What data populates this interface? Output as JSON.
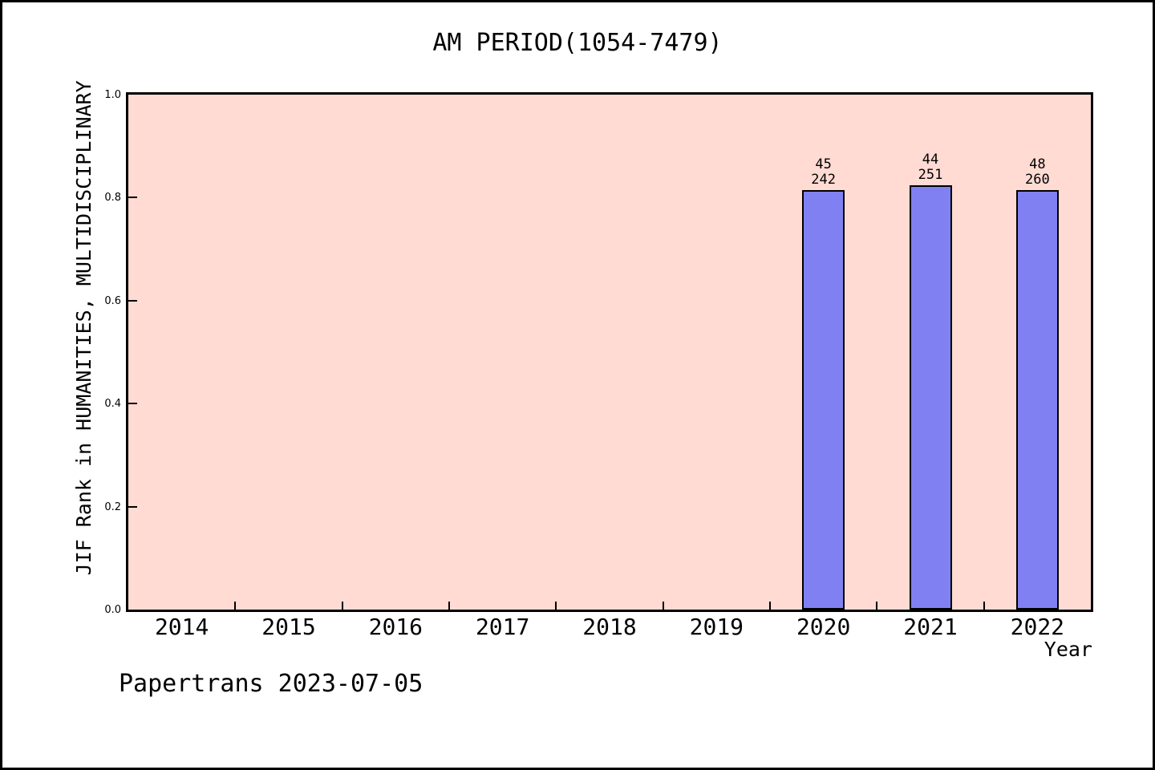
{
  "figure": {
    "footer": "Papertrans 2023-07-05"
  },
  "chart_data": {
    "type": "bar",
    "title": "AM PERIOD(1054-7479)",
    "xlabel": "Year",
    "ylabel": "JIF Rank in HUMANITIES, MULTIDISCIPLINARY",
    "categories": [
      "2014",
      "2015",
      "2016",
      "2017",
      "2018",
      "2019",
      "2020",
      "2021",
      "2022"
    ],
    "values": [
      null,
      null,
      null,
      null,
      null,
      null,
      0.814,
      0.8247,
      0.8154
    ],
    "bars": [
      {
        "category": "2020",
        "rank": 45,
        "total": 242,
        "value": 0.814,
        "label_top": "45",
        "label_bottom": "242"
      },
      {
        "category": "2021",
        "rank": 44,
        "total": 251,
        "value": 0.8247,
        "label_top": "44",
        "label_bottom": "251"
      },
      {
        "category": "2022",
        "rank": 48,
        "total": 260,
        "value": 0.8154,
        "label_top": "48",
        "label_bottom": "260"
      }
    ],
    "ylim": [
      0.0,
      1.0
    ],
    "yticks": [
      "0.0",
      "0.2",
      "0.4",
      "0.6",
      "0.8",
      "1.0"
    ],
    "grid": false,
    "legend": "none",
    "colors": {
      "plot_background": "#ffdbd4",
      "bar_fill": "#8080f2",
      "bar_edge": "#000000",
      "frame": "#000000",
      "text": "#000000"
    }
  }
}
